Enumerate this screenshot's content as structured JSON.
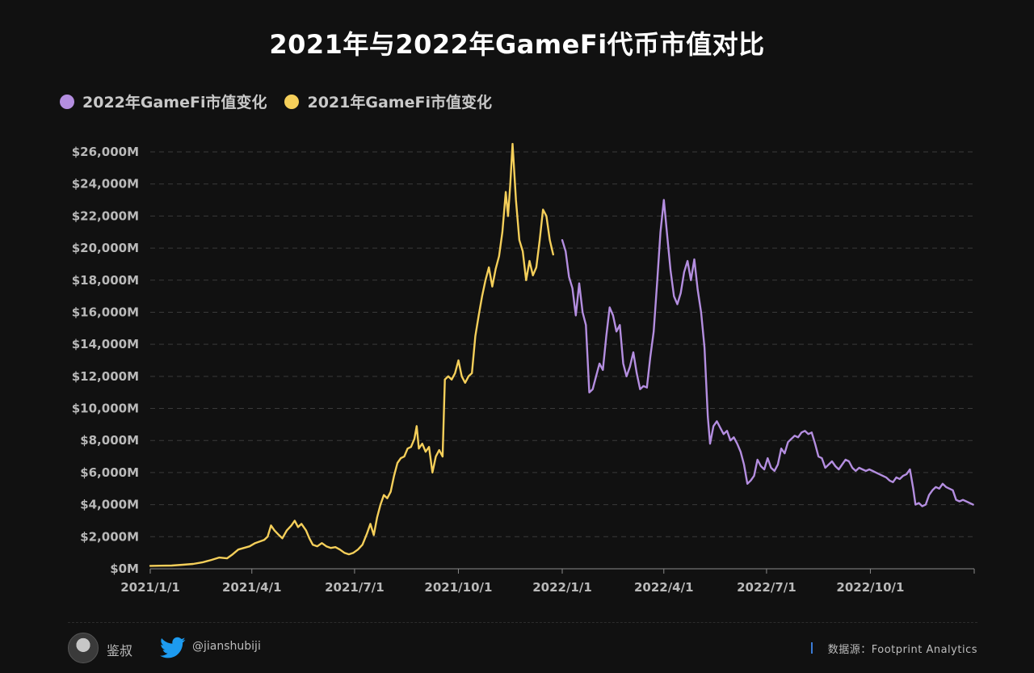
{
  "chart_data": {
    "type": "line",
    "title": "2021年与2022年GameFi代币市值对比",
    "xlabel": "",
    "ylabel": "",
    "ylim": [
      0,
      26000
    ],
    "yticks": [
      {
        "value": 0,
        "label": "$0M"
      },
      {
        "value": 2000,
        "label": "$2,000M"
      },
      {
        "value": 4000,
        "label": "$4,000M"
      },
      {
        "value": 6000,
        "label": "$6,000M"
      },
      {
        "value": 8000,
        "label": "$8,000M"
      },
      {
        "value": 10000,
        "label": "$10,000M"
      },
      {
        "value": 12000,
        "label": "$12,000M"
      },
      {
        "value": 14000,
        "label": "$14,000M"
      },
      {
        "value": 16000,
        "label": "$16,000M"
      },
      {
        "value": 18000,
        "label": "$18,000M"
      },
      {
        "value": 20000,
        "label": "$20,000M"
      },
      {
        "value": 22000,
        "label": "$22,000M"
      },
      {
        "value": 24000,
        "label": "$24,000M"
      },
      {
        "value": 26000,
        "label": "$26,000M"
      }
    ],
    "xrange": [
      "2021-01-01",
      "2023-01-01"
    ],
    "xticks": [
      {
        "date": "2021-01-01",
        "label": "2021/1/1"
      },
      {
        "date": "2021-04-01",
        "label": "2021/4/1"
      },
      {
        "date": "2021-07-01",
        "label": "2021/7/1"
      },
      {
        "date": "2021-10-01",
        "label": "2021/10/1"
      },
      {
        "date": "2022-01-01",
        "label": "2022/1/1"
      },
      {
        "date": "2022-04-01",
        "label": "2022/4/1"
      },
      {
        "date": "2022-07-01",
        "label": "2022/7/1"
      },
      {
        "date": "2022-10-01",
        "label": "2022/10/1"
      }
    ],
    "grid": true,
    "legend_position": "top-left",
    "series": [
      {
        "name": "2022年GameFi市值变化",
        "color": "#b48ee0",
        "points": [
          [
            "2022-01-01",
            20500
          ],
          [
            "2022-01-04",
            19800
          ],
          [
            "2022-01-07",
            18200
          ],
          [
            "2022-01-10",
            17500
          ],
          [
            "2022-01-13",
            15800
          ],
          [
            "2022-01-16",
            17800
          ],
          [
            "2022-01-19",
            16000
          ],
          [
            "2022-01-22",
            15200
          ],
          [
            "2022-01-25",
            11000
          ],
          [
            "2022-01-28",
            11200
          ],
          [
            "2022-01-31",
            12000
          ],
          [
            "2022-02-03",
            12800
          ],
          [
            "2022-02-06",
            12400
          ],
          [
            "2022-02-09",
            14500
          ],
          [
            "2022-02-12",
            16300
          ],
          [
            "2022-02-15",
            15800
          ],
          [
            "2022-02-18",
            14800
          ],
          [
            "2022-02-21",
            15200
          ],
          [
            "2022-02-24",
            12800
          ],
          [
            "2022-02-27",
            12000
          ],
          [
            "2022-03-02",
            12600
          ],
          [
            "2022-03-05",
            13500
          ],
          [
            "2022-03-08",
            12200
          ],
          [
            "2022-03-11",
            11200
          ],
          [
            "2022-03-14",
            11400
          ],
          [
            "2022-03-17",
            11300
          ],
          [
            "2022-03-20",
            13200
          ],
          [
            "2022-03-23",
            14800
          ],
          [
            "2022-03-26",
            17800
          ],
          [
            "2022-03-29",
            21000
          ],
          [
            "2022-04-01",
            23000
          ],
          [
            "2022-04-04",
            20800
          ],
          [
            "2022-04-07",
            18600
          ],
          [
            "2022-04-10",
            17000
          ],
          [
            "2022-04-13",
            16500
          ],
          [
            "2022-04-16",
            17200
          ],
          [
            "2022-04-19",
            18500
          ],
          [
            "2022-04-22",
            19200
          ],
          [
            "2022-04-25",
            18000
          ],
          [
            "2022-04-28",
            19300
          ],
          [
            "2022-05-01",
            17400
          ],
          [
            "2022-05-04",
            16000
          ],
          [
            "2022-05-07",
            13800
          ],
          [
            "2022-05-10",
            9500
          ],
          [
            "2022-05-12",
            7800
          ],
          [
            "2022-05-15",
            8900
          ],
          [
            "2022-05-18",
            9200
          ],
          [
            "2022-05-21",
            8800
          ],
          [
            "2022-05-24",
            8400
          ],
          [
            "2022-05-27",
            8600
          ],
          [
            "2022-05-30",
            8000
          ],
          [
            "2022-06-02",
            8200
          ],
          [
            "2022-06-05",
            7800
          ],
          [
            "2022-06-08",
            7300
          ],
          [
            "2022-06-11",
            6500
          ],
          [
            "2022-06-14",
            5300
          ],
          [
            "2022-06-17",
            5500
          ],
          [
            "2022-06-20",
            5800
          ],
          [
            "2022-06-23",
            6800
          ],
          [
            "2022-06-26",
            6400
          ],
          [
            "2022-06-29",
            6200
          ],
          [
            "2022-07-02",
            6900
          ],
          [
            "2022-07-05",
            6300
          ],
          [
            "2022-07-08",
            6100
          ],
          [
            "2022-07-11",
            6500
          ],
          [
            "2022-07-14",
            7500
          ],
          [
            "2022-07-17",
            7200
          ],
          [
            "2022-07-20",
            7900
          ],
          [
            "2022-07-23",
            8100
          ],
          [
            "2022-07-26",
            8300
          ],
          [
            "2022-07-29",
            8200
          ],
          [
            "2022-08-01",
            8500
          ],
          [
            "2022-08-04",
            8600
          ],
          [
            "2022-08-07",
            8400
          ],
          [
            "2022-08-10",
            8500
          ],
          [
            "2022-08-13",
            7800
          ],
          [
            "2022-08-16",
            7000
          ],
          [
            "2022-08-19",
            6900
          ],
          [
            "2022-08-22",
            6300
          ],
          [
            "2022-08-25",
            6500
          ],
          [
            "2022-08-28",
            6700
          ],
          [
            "2022-08-31",
            6400
          ],
          [
            "2022-09-03",
            6200
          ],
          [
            "2022-09-06",
            6500
          ],
          [
            "2022-09-09",
            6800
          ],
          [
            "2022-09-12",
            6700
          ],
          [
            "2022-09-15",
            6300
          ],
          [
            "2022-09-18",
            6100
          ],
          [
            "2022-09-21",
            6300
          ],
          [
            "2022-09-24",
            6200
          ],
          [
            "2022-09-27",
            6100
          ],
          [
            "2022-09-30",
            6200
          ],
          [
            "2022-10-03",
            6100
          ],
          [
            "2022-10-06",
            6000
          ],
          [
            "2022-10-09",
            5900
          ],
          [
            "2022-10-12",
            5800
          ],
          [
            "2022-10-15",
            5700
          ],
          [
            "2022-10-18",
            5500
          ],
          [
            "2022-10-21",
            5400
          ],
          [
            "2022-10-24",
            5700
          ],
          [
            "2022-10-27",
            5600
          ],
          [
            "2022-10-30",
            5800
          ],
          [
            "2022-11-02",
            5900
          ],
          [
            "2022-11-05",
            6200
          ],
          [
            "2022-11-08",
            5000
          ],
          [
            "2022-11-10",
            4000
          ],
          [
            "2022-11-13",
            4100
          ],
          [
            "2022-11-16",
            3900
          ],
          [
            "2022-11-19",
            4000
          ],
          [
            "2022-11-22",
            4600
          ],
          [
            "2022-11-25",
            4900
          ],
          [
            "2022-11-28",
            5100
          ],
          [
            "2022-12-01",
            5000
          ],
          [
            "2022-12-04",
            5300
          ],
          [
            "2022-12-07",
            5100
          ],
          [
            "2022-12-10",
            5000
          ],
          [
            "2022-12-13",
            4900
          ],
          [
            "2022-12-16",
            4300
          ],
          [
            "2022-12-19",
            4200
          ],
          [
            "2022-12-22",
            4300
          ],
          [
            "2022-12-25",
            4200
          ],
          [
            "2022-12-28",
            4100
          ],
          [
            "2022-12-31",
            4000
          ]
        ]
      },
      {
        "name": "2021年GameFi市值变化",
        "color": "#f5cf5a",
        "points": [
          [
            "2021-01-01",
            180
          ],
          [
            "2021-01-10",
            190
          ],
          [
            "2021-01-20",
            200
          ],
          [
            "2021-01-30",
            250
          ],
          [
            "2021-02-08",
            300
          ],
          [
            "2021-02-16",
            400
          ],
          [
            "2021-02-24",
            550
          ],
          [
            "2021-03-03",
            700
          ],
          [
            "2021-03-10",
            650
          ],
          [
            "2021-03-15",
            900
          ],
          [
            "2021-03-20",
            1200
          ],
          [
            "2021-03-25",
            1300
          ],
          [
            "2021-03-30",
            1400
          ],
          [
            "2021-04-04",
            1600
          ],
          [
            "2021-04-08",
            1700
          ],
          [
            "2021-04-12",
            1800
          ],
          [
            "2021-04-15",
            2000
          ],
          [
            "2021-04-18",
            2700
          ],
          [
            "2021-04-21",
            2400
          ],
          [
            "2021-04-25",
            2100
          ],
          [
            "2021-04-28",
            1900
          ],
          [
            "2021-05-02",
            2400
          ],
          [
            "2021-05-06",
            2700
          ],
          [
            "2021-05-09",
            3000
          ],
          [
            "2021-05-12",
            2600
          ],
          [
            "2021-05-15",
            2800
          ],
          [
            "2021-05-19",
            2400
          ],
          [
            "2021-05-22",
            1900
          ],
          [
            "2021-05-25",
            1500
          ],
          [
            "2021-05-29",
            1400
          ],
          [
            "2021-06-02",
            1600
          ],
          [
            "2021-06-06",
            1400
          ],
          [
            "2021-06-10",
            1300
          ],
          [
            "2021-06-14",
            1350
          ],
          [
            "2021-06-18",
            1200
          ],
          [
            "2021-06-22",
            1000
          ],
          [
            "2021-06-26",
            900
          ],
          [
            "2021-06-30",
            1000
          ],
          [
            "2021-07-04",
            1200
          ],
          [
            "2021-07-08",
            1500
          ],
          [
            "2021-07-12",
            2200
          ],
          [
            "2021-07-15",
            2800
          ],
          [
            "2021-07-18",
            2100
          ],
          [
            "2021-07-21",
            3200
          ],
          [
            "2021-07-24",
            4000
          ],
          [
            "2021-07-27",
            4600
          ],
          [
            "2021-07-30",
            4400
          ],
          [
            "2021-08-02",
            4800
          ],
          [
            "2021-08-05",
            5800
          ],
          [
            "2021-08-08",
            6600
          ],
          [
            "2021-08-11",
            6900
          ],
          [
            "2021-08-14",
            7000
          ],
          [
            "2021-08-17",
            7500
          ],
          [
            "2021-08-20",
            7600
          ],
          [
            "2021-08-23",
            8100
          ],
          [
            "2021-08-25",
            8900
          ],
          [
            "2021-08-27",
            7500
          ],
          [
            "2021-08-30",
            7800
          ],
          [
            "2021-09-02",
            7300
          ],
          [
            "2021-09-05",
            7600
          ],
          [
            "2021-09-08",
            6000
          ],
          [
            "2021-09-11",
            7000
          ],
          [
            "2021-09-14",
            7400
          ],
          [
            "2021-09-17",
            7000
          ],
          [
            "2021-09-19",
            11800
          ],
          [
            "2021-09-22",
            12000
          ],
          [
            "2021-09-25",
            11800
          ],
          [
            "2021-09-28",
            12200
          ],
          [
            "2021-10-01",
            13000
          ],
          [
            "2021-10-04",
            12000
          ],
          [
            "2021-10-07",
            11600
          ],
          [
            "2021-10-10",
            12000
          ],
          [
            "2021-10-13",
            12200
          ],
          [
            "2021-10-16",
            14500
          ],
          [
            "2021-10-19",
            15800
          ],
          [
            "2021-10-22",
            17000
          ],
          [
            "2021-10-25",
            18000
          ],
          [
            "2021-10-28",
            18800
          ],
          [
            "2021-10-31",
            17600
          ],
          [
            "2021-11-03",
            18700
          ],
          [
            "2021-11-06",
            19500
          ],
          [
            "2021-11-09",
            21000
          ],
          [
            "2021-11-12",
            23500
          ],
          [
            "2021-11-14",
            22000
          ],
          [
            "2021-11-16",
            24000
          ],
          [
            "2021-11-18",
            26500
          ],
          [
            "2021-11-21",
            23000
          ],
          [
            "2021-11-24",
            20500
          ],
          [
            "2021-11-27",
            19800
          ],
          [
            "2021-11-30",
            18000
          ],
          [
            "2021-12-03",
            19200
          ],
          [
            "2021-12-06",
            18300
          ],
          [
            "2021-12-09",
            18800
          ],
          [
            "2021-12-12",
            20500
          ],
          [
            "2021-12-15",
            22400
          ],
          [
            "2021-12-18",
            22000
          ],
          [
            "2021-12-21",
            20500
          ],
          [
            "2021-12-24",
            19600
          ]
        ]
      }
    ]
  },
  "footer": {
    "author": "鉴叔",
    "twitter_handle": "@jianshubiji",
    "source": "数据源：Footprint  Analytics"
  }
}
